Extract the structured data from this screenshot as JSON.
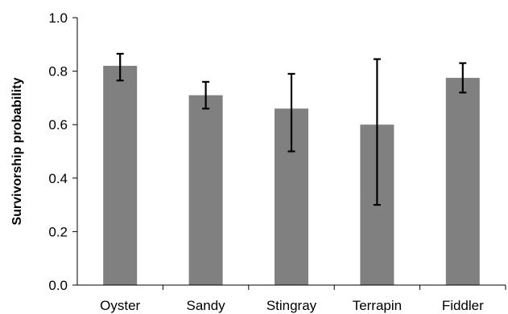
{
  "chart_data": {
    "type": "bar",
    "title": "",
    "xlabel": "",
    "ylabel": "Survivorship probability",
    "categories": [
      "Oyster",
      "Sandy",
      "Stingray",
      "Terrapin",
      "Fiddler"
    ],
    "values": [
      0.82,
      0.71,
      0.66,
      0.6,
      0.775
    ],
    "error_low": [
      0.765,
      0.66,
      0.5,
      0.3,
      0.72
    ],
    "error_high": [
      0.865,
      0.76,
      0.79,
      0.845,
      0.83
    ],
    "ylim": [
      0.0,
      1.0
    ],
    "yticks": [
      "0.0",
      "0.2",
      "0.4",
      "0.6",
      "0.8",
      "1.0"
    ],
    "grid": false,
    "legend": "none",
    "bar_color": "#808080",
    "error_bar_color": "#000000",
    "axis_color": "#000000"
  }
}
